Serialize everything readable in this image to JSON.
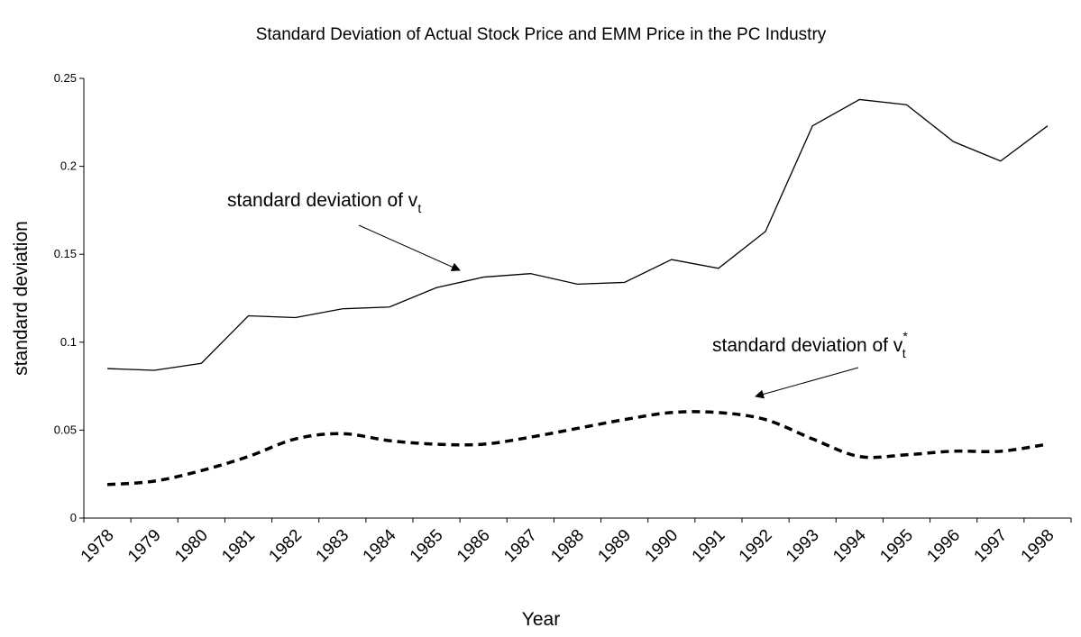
{
  "chart_data": {
    "type": "line",
    "title": "Standard Deviation of Actual Stock Price and EMM Price in the PC Industry",
    "xlabel": "Year",
    "ylabel": "standard deviation",
    "categories": [
      "1978",
      "1979",
      "1980",
      "1981",
      "1982",
      "1983",
      "1984",
      "1985",
      "1986",
      "1987",
      "1988",
      "1989",
      "1990",
      "1991",
      "1992",
      "1993",
      "1994",
      "1995",
      "1996",
      "1997",
      "1998"
    ],
    "series": [
      {
        "color": "#000000",
        "dashed": false,
        "smooth": false,
        "values": [
          0.085,
          0.084,
          0.088,
          0.115,
          0.114,
          0.119,
          0.12,
          0.131,
          0.137,
          0.139,
          0.133,
          0.134,
          0.147,
          0.142,
          0.163,
          0.223,
          0.238,
          0.235,
          0.214,
          0.203,
          0.223
        ]
      },
      {
        "color": "#000000",
        "dashed": true,
        "smooth": true,
        "values": [
          0.019,
          0.021,
          0.027,
          0.035,
          0.045,
          0.048,
          0.044,
          0.042,
          0.042,
          0.046,
          0.051,
          0.056,
          0.06,
          0.06,
          0.056,
          0.045,
          0.035,
          0.036,
          0.038,
          0.038,
          0.042
        ]
      }
    ],
    "annotations": [
      {
        "text": "standard deviation of v",
        "sub": "t"
      },
      {
        "text": "standard deviation of v",
        "sup": "*",
        "sub": "t"
      }
    ],
    "ylim": [
      0,
      0.25
    ],
    "yticks": [
      0,
      0.05,
      0.1,
      0.15,
      0.2,
      0.25
    ],
    "grid": false
  }
}
